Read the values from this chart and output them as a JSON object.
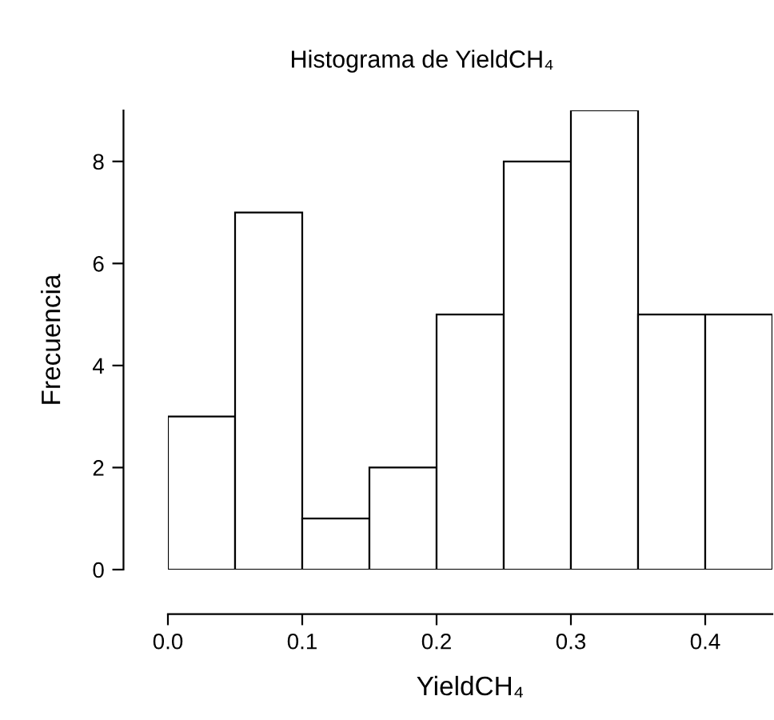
{
  "chart_data": {
    "type": "histogram",
    "title": "Histograma de YieldCH₄",
    "xlabel": "YieldCH₄",
    "ylabel": "Frecuencia",
    "bins": [
      0.0,
      0.05,
      0.1,
      0.15,
      0.2,
      0.25,
      0.3,
      0.35,
      0.4,
      0.45
    ],
    "values": [
      3,
      7,
      1,
      2,
      5,
      8,
      9,
      5,
      5
    ],
    "color": "#ffffff",
    "xlim": [
      0,
      0.45
    ],
    "ylim": [
      0,
      9
    ],
    "xticks": [
      {
        "value": 0,
        "label": "0.0"
      },
      0.1,
      0.2,
      0.3,
      0.4
    ],
    "yticks": [
      0,
      2,
      4,
      6,
      8
    ],
    "grid": false
  }
}
